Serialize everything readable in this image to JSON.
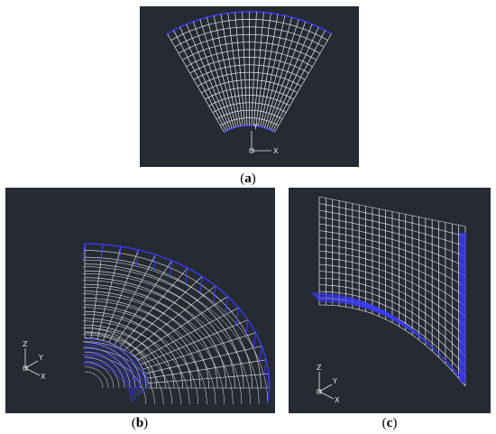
{
  "colors": {
    "background": "#ffffff",
    "viewport": "#262b33",
    "mesh": "#e8e8e8",
    "boundary": "#3a3aff"
  },
  "captions": {
    "a": {
      "open": "(",
      "letter": "a",
      "close": ")"
    },
    "b": {
      "open": "(",
      "letter": "b",
      "close": ")"
    },
    "c": {
      "open": "(",
      "letter": "c",
      "close": ")"
    }
  },
  "axes": {
    "x": "X",
    "y": "Y",
    "z": "Z"
  }
}
